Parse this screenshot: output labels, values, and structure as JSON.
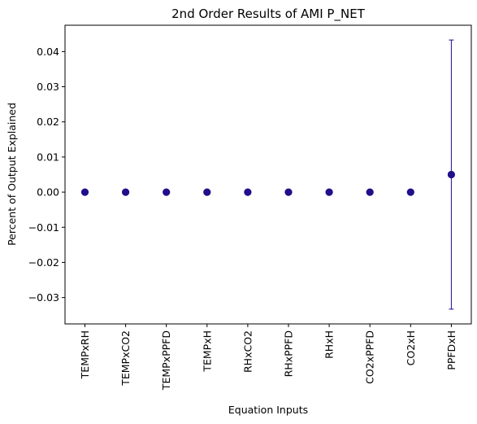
{
  "chart_data": {
    "type": "scatter",
    "title": "2nd Order Results of AMI P_NET",
    "xlabel": "Equation Inputs",
    "ylabel": "Percent of Output Explained",
    "categories": [
      "TEMPxRH",
      "TEMPxCO2",
      "TEMPxPPFD",
      "TEMPxH",
      "RHxCO2",
      "RHxPPFD",
      "RHxH",
      "CO2xPPFD",
      "CO2xH",
      "PPFDxH"
    ],
    "values": [
      0.0,
      0.0,
      0.0,
      0.0,
      0.0,
      0.0,
      0.0,
      0.0,
      0.0,
      0.005
    ],
    "error_low": [
      0.0,
      0.0,
      0.0,
      0.0,
      0.0,
      0.0,
      0.0,
      0.0,
      0.0,
      -0.0333
    ],
    "error_high": [
      0.0,
      0.0,
      0.0,
      0.0,
      0.0,
      0.0,
      0.0,
      0.0,
      0.0,
      0.0433
    ],
    "ylim": [
      -0.0375,
      0.0475
    ],
    "yticks": [
      -0.03,
      -0.02,
      -0.01,
      0.0,
      0.01,
      0.02,
      0.03,
      0.04
    ],
    "ytick_labels": [
      "−0.03",
      "−0.02",
      "−0.01",
      "0.00",
      "0.01",
      "0.02",
      "0.03",
      "0.04"
    ],
    "grid": false,
    "colors": {
      "marker": "#1f0f8a",
      "errorbar": "#1f0f8a",
      "axis": "#000000"
    }
  }
}
